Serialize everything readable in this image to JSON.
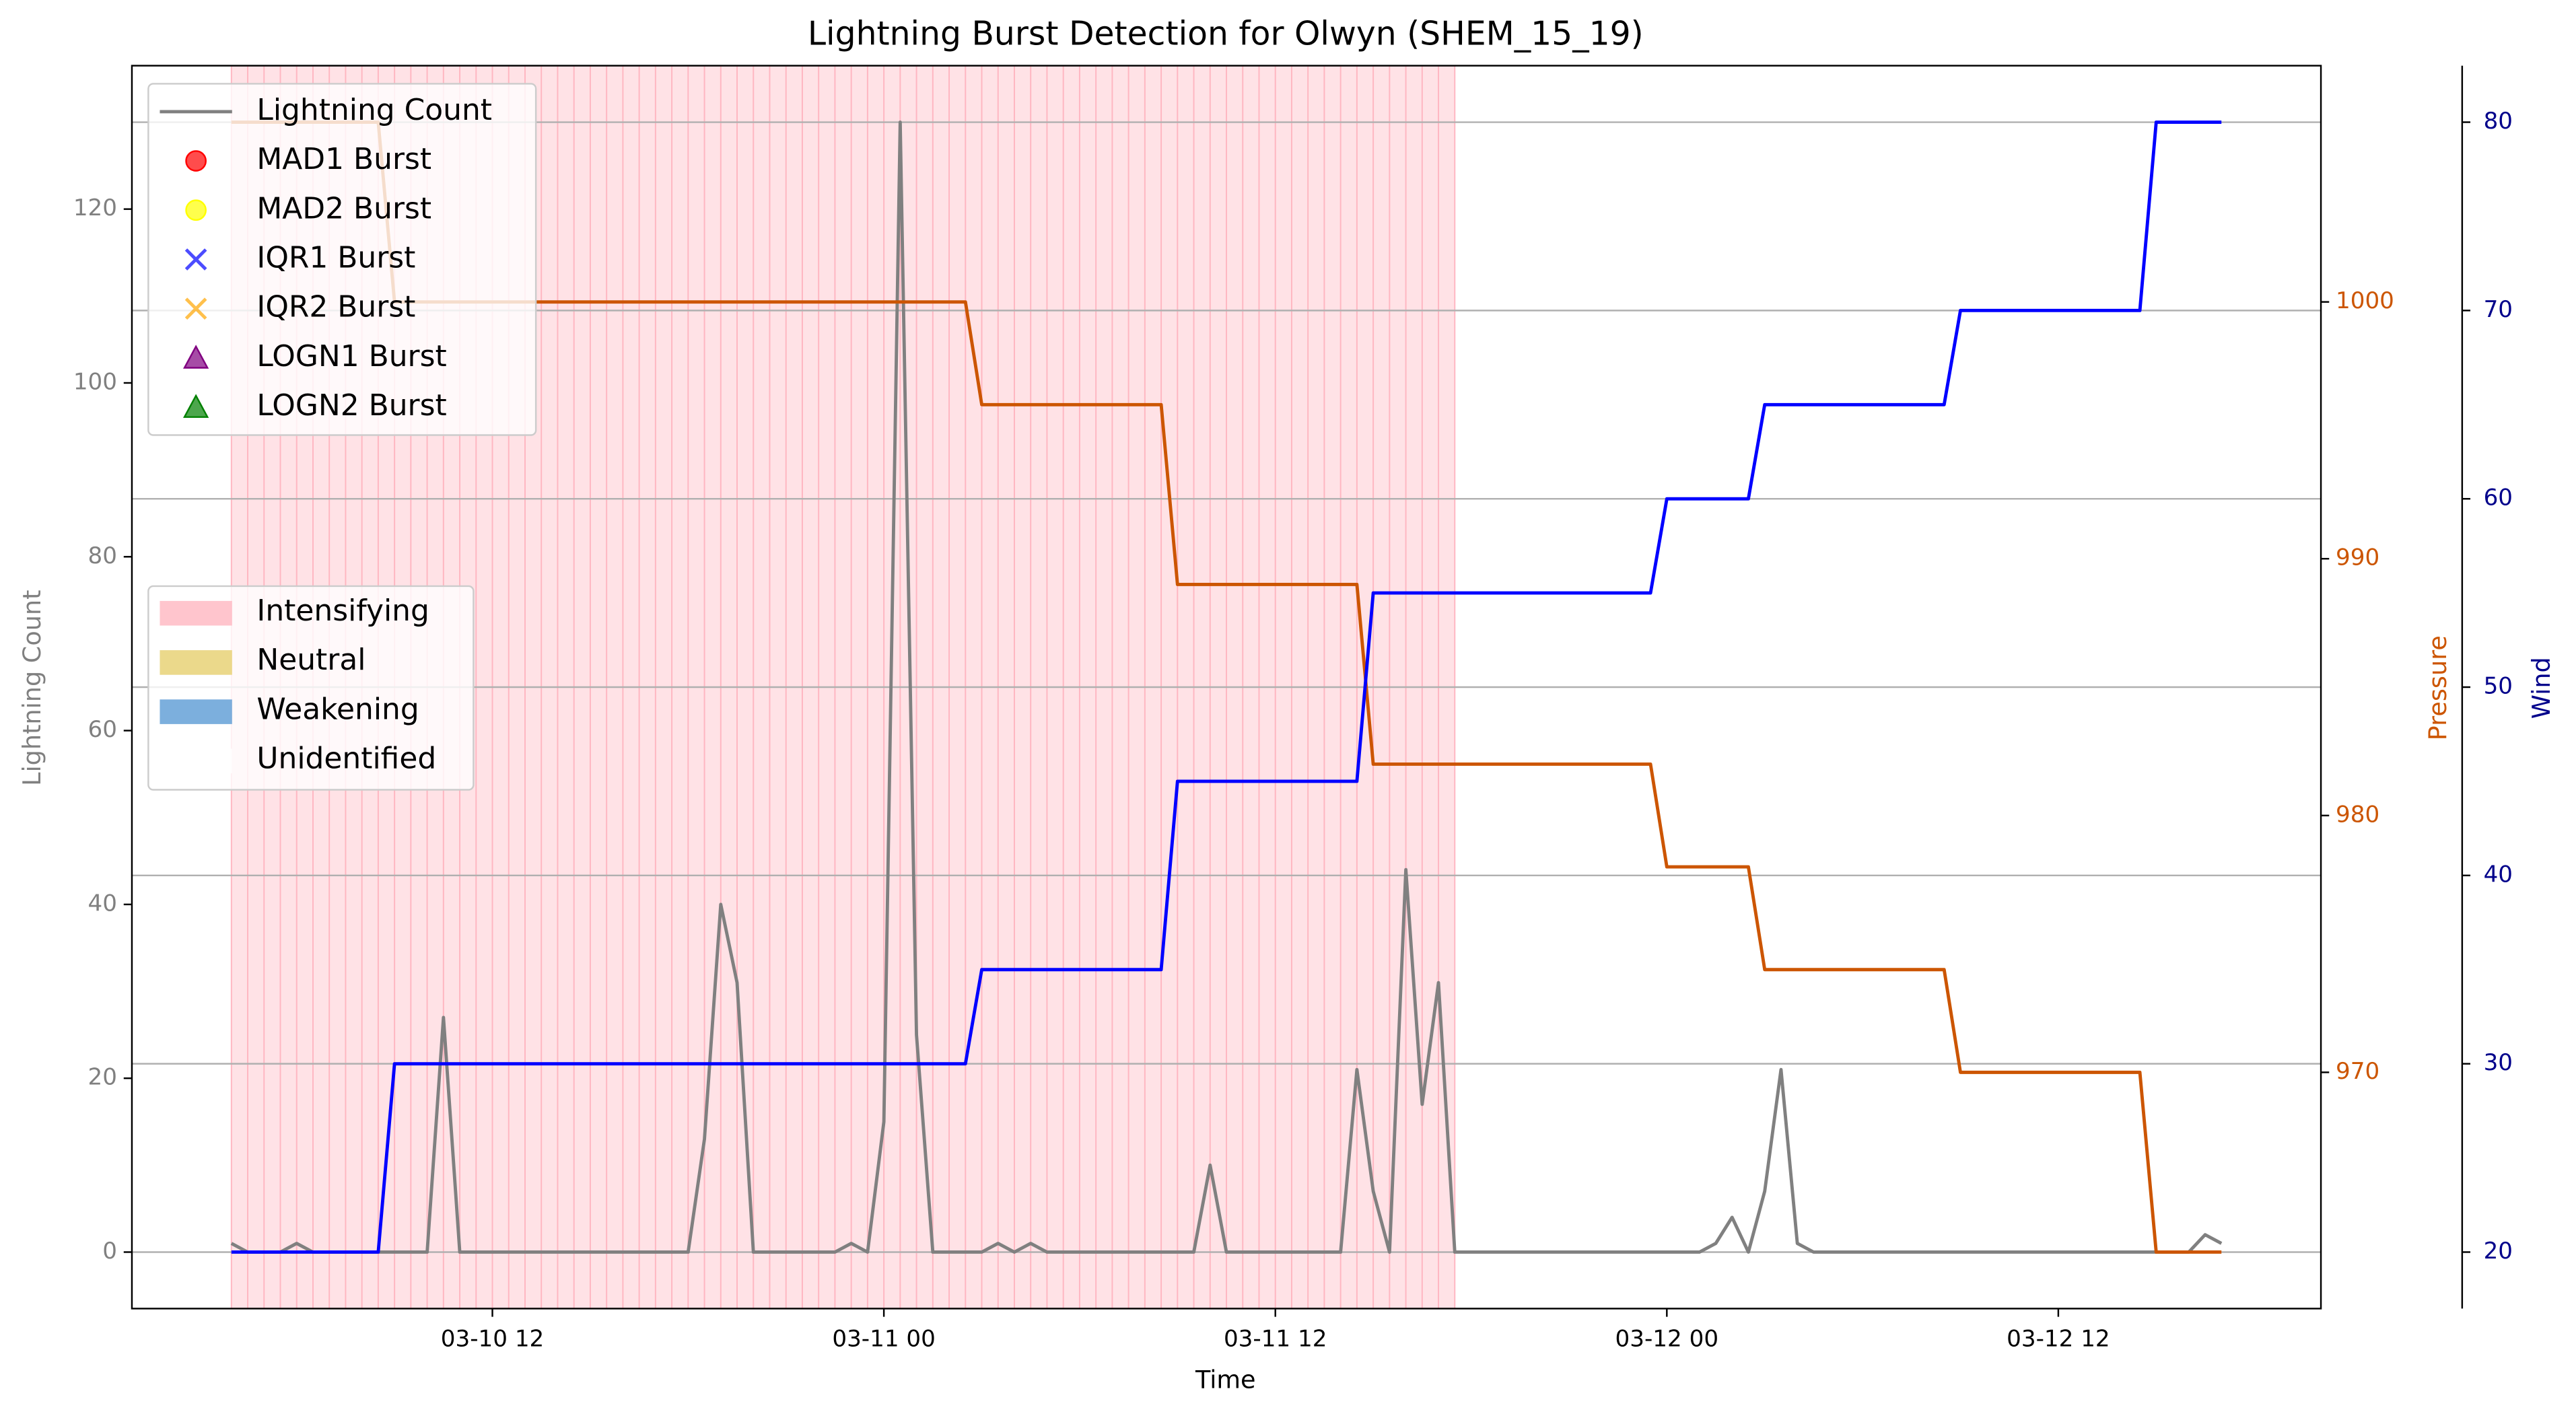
{
  "chart_data": {
    "type": "line",
    "title": "Lightning Burst Detection for Olwyn (SHEM_15_19)",
    "x_label": "Time",
    "y_label": "Lightning Count",
    "y2_label": "Pressure",
    "y3_label": "Wind",
    "x": [
      "03-10 04:00",
      "03-10 04:30",
      "03-10 05:00",
      "03-10 05:30",
      "03-10 06:00",
      "03-10 06:30",
      "03-10 07:00",
      "03-10 07:30",
      "03-10 08:00",
      "03-10 08:30",
      "03-10 09:00",
      "03-10 09:30",
      "03-10 10:00",
      "03-10 10:30",
      "03-10 11:00",
      "03-10 11:30",
      "03-10 12:00",
      "03-10 12:30",
      "03-10 13:00",
      "03-10 13:30",
      "03-10 14:00",
      "03-10 14:30",
      "03-10 15:00",
      "03-10 15:30",
      "03-10 16:00",
      "03-10 16:30",
      "03-10 17:00",
      "03-10 17:30",
      "03-10 18:00",
      "03-10 18:30",
      "03-10 19:00",
      "03-10 19:30",
      "03-10 20:00",
      "03-10 20:30",
      "03-10 21:00",
      "03-10 21:30",
      "03-10 22:00",
      "03-10 22:30",
      "03-10 23:00",
      "03-10 23:30",
      "03-11 00:00",
      "03-11 00:30",
      "03-11 01:00",
      "03-11 01:30",
      "03-11 02:00",
      "03-11 02:30",
      "03-11 03:00",
      "03-11 03:30",
      "03-11 04:00",
      "03-11 04:30",
      "03-11 05:00",
      "03-11 05:30",
      "03-11 06:00",
      "03-11 06:30",
      "03-11 07:00",
      "03-11 07:30",
      "03-11 08:00",
      "03-11 08:30",
      "03-11 09:00",
      "03-11 09:30",
      "03-11 10:00",
      "03-11 10:30",
      "03-11 11:00",
      "03-11 11:30",
      "03-11 12:00",
      "03-11 12:30",
      "03-11 13:00",
      "03-11 13:30",
      "03-11 14:00",
      "03-11 14:30",
      "03-11 15:00",
      "03-11 15:30",
      "03-11 16:00",
      "03-11 16:30",
      "03-11 17:00",
      "03-11 17:30",
      "03-11 18:00",
      "03-11 18:30",
      "03-11 19:00",
      "03-11 19:30",
      "03-11 20:00",
      "03-11 20:30",
      "03-11 21:00",
      "03-11 21:30",
      "03-11 22:00",
      "03-11 22:30",
      "03-11 23:00",
      "03-11 23:30",
      "03-12 00:00",
      "03-12 00:30",
      "03-12 01:00",
      "03-12 01:30",
      "03-12 02:00",
      "03-12 02:30",
      "03-12 03:00",
      "03-12 03:30",
      "03-12 04:00",
      "03-12 04:30",
      "03-12 05:00",
      "03-12 05:30",
      "03-12 06:00",
      "03-12 06:30",
      "03-12 07:00",
      "03-12 07:30",
      "03-12 08:00",
      "03-12 08:30",
      "03-12 09:00",
      "03-12 09:30",
      "03-12 10:00",
      "03-12 10:30",
      "03-12 11:00",
      "03-12 11:30",
      "03-12 12:00",
      "03-12 12:30",
      "03-12 13:00",
      "03-12 13:30",
      "03-12 14:00",
      "03-12 14:30",
      "03-12 15:00",
      "03-12 15:30",
      "03-12 16:00",
      "03-12 16:30",
      "03-12 17:00"
    ],
    "xlim": [
      "03-10 00:57",
      "03-12 20:03"
    ],
    "xticks": [
      {
        "value": "03-10 12:00",
        "label": "03-10 12"
      },
      {
        "value": "03-11 00:00",
        "label": "03-11 00"
      },
      {
        "value": "03-11 12:00",
        "label": "03-11 12"
      },
      {
        "value": "03-12 00:00",
        "label": "03-12 00"
      },
      {
        "value": "03-12 12:00",
        "label": "03-12 12"
      }
    ],
    "ylim": [
      -6.5,
      136.5
    ],
    "yticks": [
      0,
      20,
      40,
      60,
      80,
      100,
      120
    ],
    "y2lim": [
      960.8,
      1009.2
    ],
    "y2ticks": [
      970,
      980,
      990,
      1000
    ],
    "y3lim": [
      17,
      83
    ],
    "y3ticks": [
      20,
      30,
      40,
      50,
      60,
      70,
      80
    ],
    "grid_axis": "y3",
    "series": [
      {
        "name": "Lightning Count",
        "color": "#808080",
        "axis": "y",
        "values": [
          1,
          0,
          0,
          0,
          1,
          0,
          0,
          0,
          0,
          0,
          0,
          0,
          0,
          27,
          0,
          0,
          0,
          0,
          0,
          0,
          0,
          0,
          0,
          0,
          0,
          0,
          0,
          0,
          0,
          13,
          40,
          31,
          0,
          0,
          0,
          0,
          0,
          0,
          1,
          0,
          15,
          130,
          25,
          0,
          0,
          0,
          0,
          1,
          0,
          1,
          0,
          0,
          0,
          0,
          0,
          0,
          0,
          0,
          0,
          0,
          10,
          0,
          0,
          0,
          0,
          0,
          0,
          0,
          0,
          21,
          7,
          0,
          44,
          17,
          31,
          0,
          0,
          0,
          0,
          0,
          0,
          0,
          0,
          0,
          0,
          0,
          0,
          0,
          0,
          0,
          0,
          1,
          4,
          0,
          7,
          21,
          1,
          0,
          0,
          0,
          0,
          0,
          0,
          0,
          0,
          0,
          0,
          0,
          0,
          0,
          0,
          0,
          0,
          0,
          0,
          0,
          0,
          0,
          0,
          0,
          0,
          2,
          1
        ]
      },
      {
        "color": "#cc5500",
        "axis": "y2",
        "values": [
          1007,
          1007,
          1007,
          1007,
          1007,
          1007,
          1007,
          1007,
          1007,
          1007,
          1000,
          1000,
          1000,
          1000,
          1000,
          1000,
          1000,
          1000,
          1000,
          1000,
          1000,
          1000,
          1000,
          1000,
          1000,
          1000,
          1000,
          1000,
          1000,
          1000,
          1000,
          1000,
          1000,
          1000,
          1000,
          1000,
          1000,
          1000,
          1000,
          1000,
          1000,
          1000,
          1000,
          1000,
          1000,
          1000,
          996,
          996,
          996,
          996,
          996,
          996,
          996,
          996,
          996,
          996,
          996,
          996,
          989,
          989,
          989,
          989,
          989,
          989,
          989,
          989,
          989,
          989,
          989,
          989,
          982,
          982,
          982,
          982,
          982,
          982,
          982,
          982,
          982,
          982,
          982,
          982,
          982,
          982,
          982,
          982,
          982,
          982,
          978,
          978,
          978,
          978,
          978,
          978,
          974,
          974,
          974,
          974,
          974,
          974,
          974,
          974,
          974,
          974,
          974,
          974,
          970,
          970,
          970,
          970,
          970,
          970,
          970,
          970,
          970,
          970,
          970,
          970,
          963,
          963,
          963,
          963,
          963
        ]
      },
      {
        "color": "#0000ff",
        "axis": "y3",
        "values": [
          20,
          20,
          20,
          20,
          20,
          20,
          20,
          20,
          20,
          20,
          30,
          30,
          30,
          30,
          30,
          30,
          30,
          30,
          30,
          30,
          30,
          30,
          30,
          30,
          30,
          30,
          30,
          30,
          30,
          30,
          30,
          30,
          30,
          30,
          30,
          30,
          30,
          30,
          30,
          30,
          30,
          30,
          30,
          30,
          30,
          30,
          35,
          35,
          35,
          35,
          35,
          35,
          35,
          35,
          35,
          35,
          35,
          35,
          45,
          45,
          45,
          45,
          45,
          45,
          45,
          45,
          45,
          45,
          45,
          45,
          55,
          55,
          55,
          55,
          55,
          55,
          55,
          55,
          55,
          55,
          55,
          55,
          55,
          55,
          55,
          55,
          55,
          55,
          60,
          60,
          60,
          60,
          60,
          60,
          65,
          65,
          65,
          65,
          65,
          65,
          65,
          65,
          65,
          65,
          65,
          65,
          70,
          70,
          70,
          70,
          70,
          70,
          70,
          70,
          70,
          70,
          70,
          70,
          80,
          80,
          80,
          80,
          80
        ]
      }
    ],
    "bursts": [
      {
        "name": "MAD1 Burst",
        "color": "#ff0000",
        "marker": "circle",
        "values": []
      },
      {
        "name": "MAD2 Burst",
        "color": "#ffff00",
        "marker": "circle",
        "values": []
      },
      {
        "name": "IQR1 Burst",
        "color": "#0000ff",
        "marker": "x",
        "values": []
      },
      {
        "name": "IQR2 Burst",
        "color": "#ffa500",
        "marker": "x",
        "values": []
      },
      {
        "name": "LOGN1 Burst",
        "color": "#800080",
        "marker": "triangle",
        "values": []
      },
      {
        "name": "LOGN2 Burst",
        "color": "#008000",
        "marker": "triangle",
        "values": []
      }
    ],
    "phases": [
      {
        "name": "Intensifying",
        "color": "#ffb6c1"
      },
      {
        "name": "Neutral",
        "color": "#e6cf6e"
      },
      {
        "name": "Weakening",
        "color": "#5b9bd5"
      },
      {
        "name": "Unidentified",
        "color": "#ffffff"
      }
    ],
    "spans": [
      {
        "start": "03-10 04:00",
        "end": "03-11 17:30",
        "color": "#ffb6c1"
      }
    ],
    "y_color": "#808080",
    "y2_color": "#cc5500",
    "y3_color": "#00008b"
  }
}
